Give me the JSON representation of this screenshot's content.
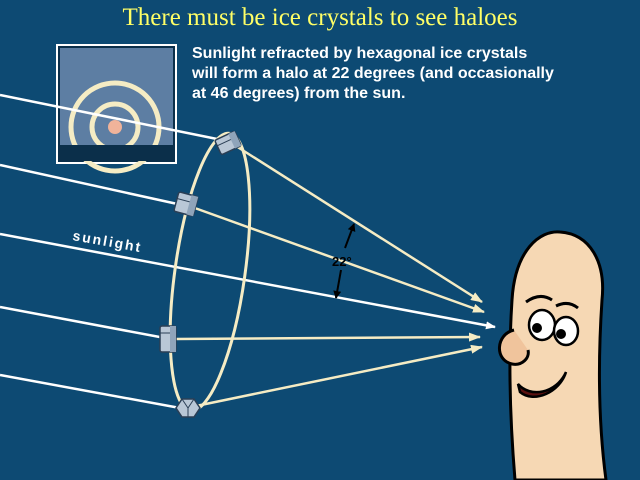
{
  "title": "There must be ice crystals to see haloes",
  "caption": {
    "line1": "Sunlight refracted by hexagonal ice crystals",
    "line2": "will form a halo at 22 degrees (and occasionally",
    "line3": "at 46 degrees) from the sun."
  },
  "labels": {
    "sunlight": "sunlight",
    "angle": "22°"
  },
  "colors": {
    "background": "#0d4a73",
    "title": "#ffff66",
    "ray": "#ffffff",
    "refracted_ray": "#f5ecc4",
    "halo_ring": "#f5ecc4",
    "crystal": "#b9c7d6",
    "face": "#f6d8b4"
  },
  "icons": {
    "inset": "halo-rings-inset-icon",
    "crystal": "hexagonal-ice-crystal-icon",
    "observer": "cartoon-face-icon"
  }
}
